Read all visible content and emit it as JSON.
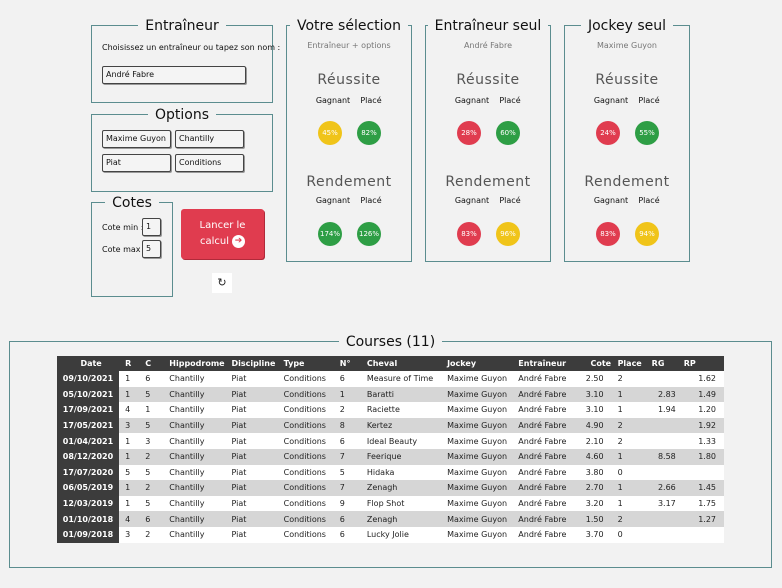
{
  "trainer": {
    "legend": "Entraîneur",
    "prompt": "Choisissez un entraîneur ou tapez son nom :",
    "value": "André Fabre"
  },
  "options": {
    "legend": "Options",
    "fields": [
      "Maxime Guyon",
      "Chantilly",
      "Piat",
      "Conditions"
    ]
  },
  "cotes": {
    "legend": "Cotes",
    "min_label": "Cote min :",
    "min_value": "1",
    "max_label": "Cote max :",
    "max_value": "5"
  },
  "calc_button": {
    "line1": "Lancer le",
    "line2": "calcul",
    "arrow": "➔"
  },
  "reset_icon": "↻",
  "panels": [
    {
      "title": "Votre sélection",
      "subtitle": "Entraîneur + options",
      "reussite": {
        "label": "Réussite",
        "gagnant": "45%",
        "place": "82%",
        "gagnant_color": "#f0c419",
        "place_color": "#2e9e45"
      },
      "rendement": {
        "label": "Rendement",
        "gagnant": "174%",
        "place": "126%",
        "gagnant_color": "#2e9e45",
        "place_color": "#2e9e45"
      }
    },
    {
      "title": "Entraîneur seul",
      "subtitle": "André Fabre",
      "reussite": {
        "label": "Réussite",
        "gagnant": "28%",
        "place": "60%",
        "gagnant_color": "#e03c4f",
        "place_color": "#2e9e45"
      },
      "rendement": {
        "label": "Rendement",
        "gagnant": "83%",
        "place": "96%",
        "gagnant_color": "#e03c4f",
        "place_color": "#f0c419"
      }
    },
    {
      "title": "Jockey seul",
      "subtitle": "Maxime Guyon",
      "reussite": {
        "label": "Réussite",
        "gagnant": "24%",
        "place": "55%",
        "gagnant_color": "#e03c4f",
        "place_color": "#2e9e45"
      },
      "rendement": {
        "label": "Rendement",
        "gagnant": "83%",
        "place": "94%",
        "gagnant_color": "#e03c4f",
        "place_color": "#f0c419"
      }
    }
  ],
  "col_labels": {
    "gagnant": "Gagnant",
    "place": "Placé"
  },
  "courses": {
    "legend": "Courses (11)",
    "headers": [
      "Date",
      "R",
      "C",
      "Hippodrome",
      "Discipline",
      "Type",
      "N°",
      "Cheval",
      "Jockey",
      "Entraîneur",
      "Cote",
      "Place",
      "RG",
      "RP"
    ],
    "rows": [
      [
        "09/10/2021",
        "1",
        "6",
        "Chantilly",
        "Piat",
        "Conditions",
        "6",
        "Measure of Time",
        "Maxime Guyon",
        "André Fabre",
        "2.50",
        "2",
        "",
        "1.62"
      ],
      [
        "05/10/2021",
        "1",
        "5",
        "Chantilly",
        "Piat",
        "Conditions",
        "1",
        "Baratti",
        "Maxime Guyon",
        "André Fabre",
        "3.10",
        "1",
        "2.83",
        "1.49"
      ],
      [
        "17/09/2021",
        "4",
        "1",
        "Chantilly",
        "Piat",
        "Conditions",
        "2",
        "Raciette",
        "Maxime Guyon",
        "André Fabre",
        "3.10",
        "1",
        "1.94",
        "1.20"
      ],
      [
        "17/05/2021",
        "3",
        "5",
        "Chantilly",
        "Piat",
        "Conditions",
        "8",
        "Kertez",
        "Maxime Guyon",
        "André Fabre",
        "4.90",
        "2",
        "",
        "1.92"
      ],
      [
        "01/04/2021",
        "1",
        "3",
        "Chantilly",
        "Piat",
        "Conditions",
        "6",
        "Ideal Beauty",
        "Maxime Guyon",
        "André Fabre",
        "2.10",
        "2",
        "",
        "1.33"
      ],
      [
        "08/12/2020",
        "1",
        "2",
        "Chantilly",
        "Piat",
        "Conditions",
        "7",
        "Feerique",
        "Maxime Guyon",
        "André Fabre",
        "4.60",
        "1",
        "8.58",
        "1.80"
      ],
      [
        "17/07/2020",
        "5",
        "5",
        "Chantilly",
        "Piat",
        "Conditions",
        "5",
        "Hidaka",
        "Maxime Guyon",
        "André Fabre",
        "3.80",
        "0",
        "",
        ""
      ],
      [
        "06/05/2019",
        "1",
        "2",
        "Chantilly",
        "Piat",
        "Conditions",
        "7",
        "Zenagh",
        "Maxime Guyon",
        "André Fabre",
        "2.70",
        "1",
        "2.66",
        "1.45"
      ],
      [
        "12/03/2019",
        "1",
        "5",
        "Chantilly",
        "Piat",
        "Conditions",
        "9",
        "Flop Shot",
        "Maxime Guyon",
        "André Fabre",
        "3.20",
        "1",
        "3.17",
        "1.75"
      ],
      [
        "01/10/2018",
        "4",
        "6",
        "Chantilly",
        "Piat",
        "Conditions",
        "6",
        "Zenagh",
        "Maxime Guyon",
        "André Fabre",
        "1.50",
        "2",
        "",
        "1.27"
      ],
      [
        "01/09/2018",
        "3",
        "2",
        "Chantilly",
        "Piat",
        "Conditions",
        "6",
        "Lucky Jolie",
        "Maxime Guyon",
        "André Fabre",
        "3.70",
        "0",
        "",
        ""
      ]
    ]
  }
}
